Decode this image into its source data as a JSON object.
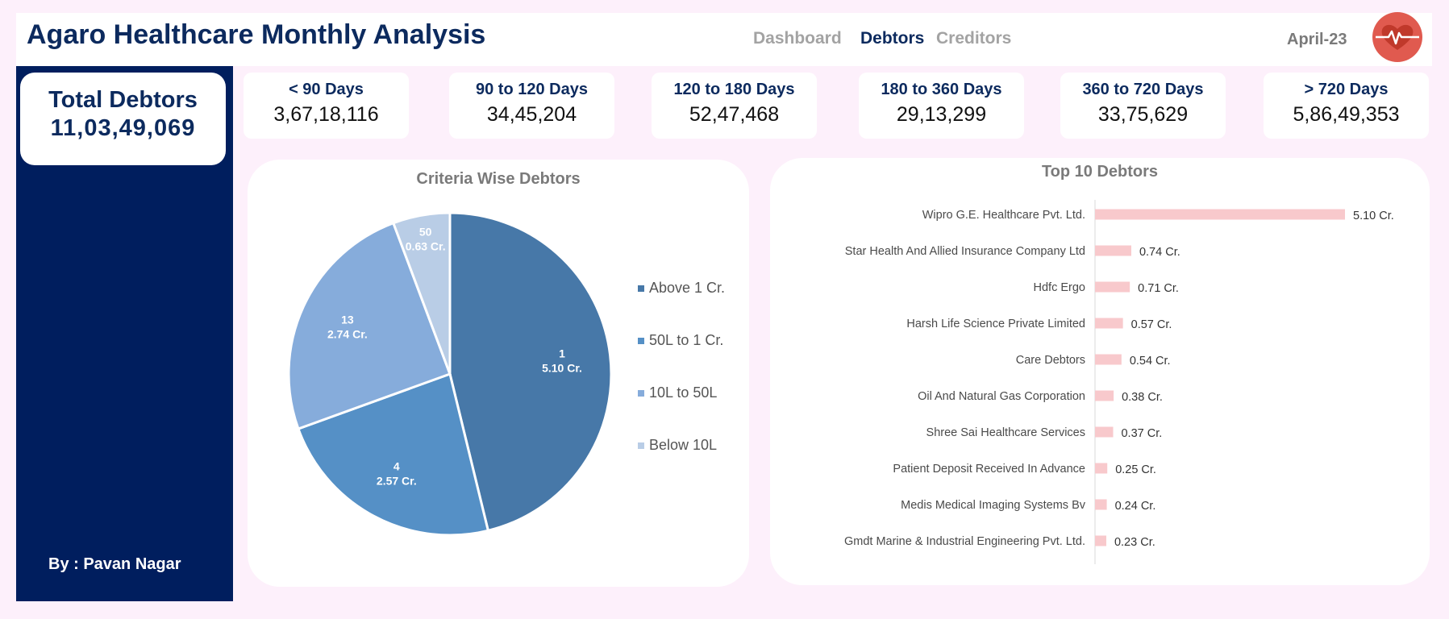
{
  "header": {
    "title": "Agaro Healthcare Monthly Analysis",
    "nav": [
      "Dashboard",
      "Debtors",
      "Creditors"
    ],
    "active_nav": "Debtors",
    "period": "April-23",
    "logo_icon": "heart-pulse-icon",
    "colors": {
      "navy": "#0c2a5e",
      "inactive": "#a3a3a3",
      "logo": "#e05a4f"
    }
  },
  "sidebar": {
    "total_label": "Total Debtors",
    "total_value": "11,03,49,069",
    "author": "By : Pavan Nagar",
    "background": "#001e5e"
  },
  "aging": [
    {
      "label": "< 90 Days",
      "value": "3,67,18,116"
    },
    {
      "label": "90 to 120 Days",
      "value": "34,45,204"
    },
    {
      "label": "120 to 180 Days",
      "value": "52,47,468"
    },
    {
      "label": "180 to 360 Days",
      "value": "29,13,299"
    },
    {
      "label": "360 to 720 Days",
      "value": "33,75,629"
    },
    {
      "label": "> 720 Days",
      "value": "5,86,49,353"
    }
  ],
  "pie_panel": {
    "title": "Criteria Wise Debtors"
  },
  "bar_panel": {
    "title": "Top 10 Debtors"
  },
  "chart_data": [
    {
      "type": "pie",
      "title": "Criteria Wise Debtors",
      "legend_position": "right",
      "slices": [
        {
          "name": "Above 1 Cr.",
          "count": "1",
          "value": 5.1,
          "label": "5.10 Cr.",
          "color": "#4778a8"
        },
        {
          "name": "50L to 1 Cr.",
          "count": "4",
          "value": 2.57,
          "label": "2.57 Cr.",
          "color": "#5590c6"
        },
        {
          "name": "10L to 50L",
          "count": "13",
          "value": 2.74,
          "label": "2.74 Cr.",
          "color": "#86acdb"
        },
        {
          "name": "Below 10L",
          "count": "50",
          "value": 0.63,
          "label": "0.63 Cr.",
          "color": "#b9cde6"
        }
      ]
    },
    {
      "type": "bar",
      "orientation": "horizontal",
      "title": "Top 10 Debtors",
      "bar_color": "#f8c9cc",
      "categories": [
        "Wipro G.E. Healthcare Pvt. Ltd.",
        "Star Health And Allied Insurance Company Ltd",
        "Hdfc Ergo",
        "Harsh Life Science Private Limited",
        "Care Debtors",
        "Oil And Natural Gas Corporation",
        "Shree Sai Healthcare Services",
        "Patient Deposit Received In Advance",
        "Medis Medical Imaging Systems Bv",
        "Gmdt Marine & Industrial Engineering Pvt. Ltd."
      ],
      "values": [
        5.1,
        0.74,
        0.71,
        0.57,
        0.54,
        0.38,
        0.37,
        0.25,
        0.24,
        0.23
      ],
      "labels": [
        "5.10 Cr.",
        "0.74 Cr.",
        "0.71 Cr.",
        "0.57 Cr.",
        "0.54 Cr.",
        "0.38 Cr.",
        "0.37 Cr.",
        "0.25 Cr.",
        "0.24 Cr.",
        "0.23 Cr."
      ]
    }
  ]
}
